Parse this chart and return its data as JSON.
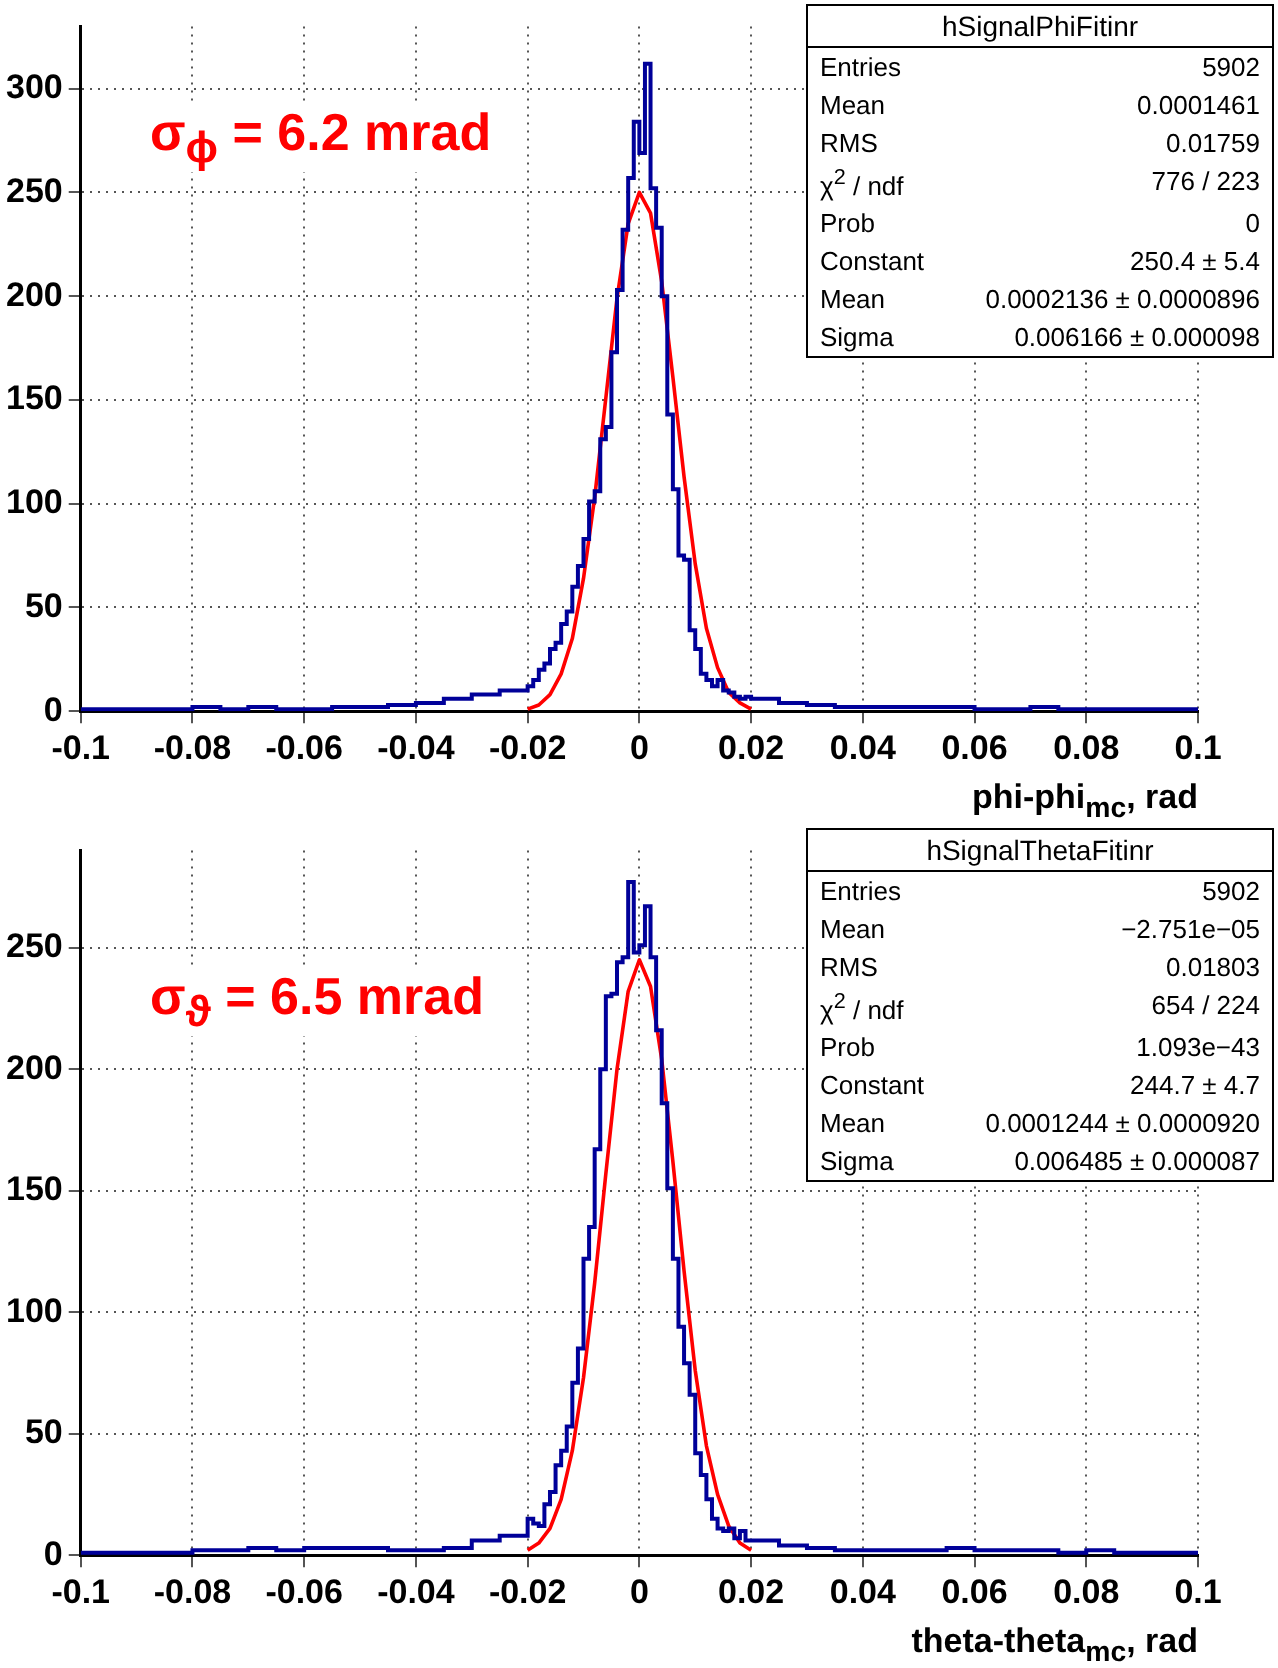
{
  "chart_data": [
    {
      "type": "histogram",
      "xlabel": "phi-phi$_{mc}$, rad",
      "color": "#000099",
      "bins": [
        -0.1,
        -0.095,
        -0.09,
        -0.085,
        -0.08,
        -0.075,
        -0.07,
        -0.065,
        -0.06,
        -0.055,
        -0.05,
        -0.045,
        -0.04,
        -0.035,
        -0.03,
        -0.025,
        -0.02,
        -0.019,
        -0.018,
        -0.017,
        -0.016,
        -0.015,
        -0.014,
        -0.013,
        -0.012,
        -0.011,
        -0.01,
        -0.009,
        -0.008,
        -0.007,
        -0.006,
        -0.005,
        -0.004,
        -0.003,
        -0.002,
        -0.001,
        0,
        0.001,
        0.002,
        0.003,
        0.004,
        0.005,
        0.006,
        0.007,
        0.008,
        0.009,
        0.01,
        0.011,
        0.012,
        0.013,
        0.014,
        0.015,
        0.016,
        0.017,
        0.018,
        0.019,
        0.02,
        0.025,
        0.03,
        0.035,
        0.04,
        0.045,
        0.05,
        0.055,
        0.06,
        0.065,
        0.07,
        0.075,
        0.08,
        0.085,
        0.09,
        0.095,
        0.1
      ],
      "values": [
        1,
        1,
        1,
        1,
        2,
        1,
        2,
        1,
        1,
        2,
        2,
        3,
        4,
        6,
        8,
        10,
        12,
        15,
        20,
        23,
        30,
        33,
        42,
        48,
        60,
        70,
        83,
        101,
        106,
        131,
        137,
        173,
        203,
        232,
        257,
        284,
        269,
        312,
        252,
        233,
        200,
        143,
        107,
        75,
        73,
        39,
        30,
        18,
        15,
        12,
        15,
        10,
        9,
        7,
        6,
        7,
        6,
        4,
        3,
        2,
        2,
        2,
        2,
        2,
        1,
        1,
        2,
        1,
        1,
        1,
        1,
        1
      ],
      "series": [
        {
          "type": "line",
          "color": "#ff0000",
          "x": [
            -0.02,
            -0.018,
            -0.016,
            -0.014,
            -0.012,
            -0.01,
            -0.008,
            -0.006,
            -0.004,
            -0.002,
            0,
            0.002,
            0.004,
            0.006,
            0.008,
            0.01,
            0.012,
            0.014,
            0.016,
            0.018,
            0.02
          ],
          "values": [
            1,
            3,
            8,
            18,
            35,
            64,
            103,
            151,
            199,
            235,
            250,
            240,
            207,
            161,
            113,
            71,
            40,
            21,
            9,
            4,
            1
          ]
        }
      ],
      "xlim": [
        -0.1,
        0.1
      ],
      "xticks": [
        -0.1,
        -0.08,
        -0.06,
        -0.04,
        -0.02,
        0,
        0.02,
        0.04,
        0.06,
        0.08,
        0.1
      ],
      "ylim": [
        0,
        330
      ],
      "yticks": [
        0,
        50,
        100,
        150,
        200,
        250,
        300
      ],
      "grid": true,
      "legend": false,
      "marker": "none",
      "annotations": [
        "σ$_{ϕ}$ = 6.2 mrad",
        "hSignalPhiFitinr",
        "Entries 5902",
        "Mean 0.0001461",
        "RMS 0.01759",
        "χ$^{2}$ / ndf 776 / 223",
        "Prob 0",
        "Constant 250.4 ± 5.4",
        "Mean 0.0002136 ± 0.0000896",
        "Sigma 0.006166 ± 0.000098"
      ]
    },
    {
      "type": "histogram",
      "xlabel": "theta-theta$_{mc}$, rad",
      "color": "#000099",
      "bins": [
        -0.1,
        -0.095,
        -0.09,
        -0.085,
        -0.08,
        -0.075,
        -0.07,
        -0.065,
        -0.06,
        -0.055,
        -0.05,
        -0.045,
        -0.04,
        -0.035,
        -0.03,
        -0.025,
        -0.02,
        -0.019,
        -0.018,
        -0.017,
        -0.016,
        -0.015,
        -0.014,
        -0.013,
        -0.012,
        -0.011,
        -0.01,
        -0.009,
        -0.008,
        -0.007,
        -0.006,
        -0.005,
        -0.004,
        -0.003,
        -0.002,
        -0.001,
        0,
        0.001,
        0.002,
        0.003,
        0.004,
        0.005,
        0.006,
        0.007,
        0.008,
        0.009,
        0.01,
        0.011,
        0.012,
        0.013,
        0.014,
        0.015,
        0.016,
        0.017,
        0.018,
        0.019,
        0.02,
        0.025,
        0.03,
        0.035,
        0.04,
        0.045,
        0.05,
        0.055,
        0.06,
        0.065,
        0.07,
        0.075,
        0.08,
        0.085,
        0.09,
        0.095,
        0.1
      ],
      "values": [
        1,
        1,
        1,
        1,
        2,
        2,
        3,
        2,
        3,
        3,
        3,
        2,
        2,
        3,
        6,
        8,
        15,
        13,
        12,
        21,
        26,
        37,
        43,
        53,
        71,
        85,
        122,
        135,
        167,
        200,
        230,
        231,
        244,
        246,
        277,
        248,
        251,
        267,
        246,
        216,
        186,
        151,
        122,
        94,
        79,
        66,
        42,
        33,
        23,
        15,
        11,
        10,
        11,
        7,
        10,
        6,
        6,
        4,
        3,
        2,
        2,
        2,
        2,
        3,
        2,
        2,
        2,
        1,
        2,
        1,
        1,
        1
      ],
      "series": [
        {
          "type": "line",
          "color": "#ff0000",
          "x": [
            -0.02,
            -0.018,
            -0.016,
            -0.014,
            -0.012,
            -0.01,
            -0.008,
            -0.006,
            -0.004,
            -0.002,
            0,
            0.002,
            0.004,
            0.006,
            0.008,
            0.01,
            0.012,
            0.014,
            0.016,
            0.018,
            0.02
          ],
          "values": [
            2,
            5,
            11,
            23,
            43,
            73,
            112,
            157,
            200,
            232,
            245,
            234,
            204,
            162,
            117,
            76,
            45,
            25,
            12,
            5,
            2
          ]
        }
      ],
      "xlim": [
        -0.1,
        0.1
      ],
      "xticks": [
        -0.1,
        -0.08,
        -0.06,
        -0.04,
        -0.02,
        0,
        0.02,
        0.04,
        0.06,
        0.08,
        0.1
      ],
      "ylim": [
        0,
        290
      ],
      "yticks": [
        0,
        50,
        100,
        150,
        200,
        250
      ],
      "grid": true,
      "legend": false,
      "marker": "none",
      "annotations": [
        "σ$_{ϑ}$ = 6.5 mrad",
        "hSignalThetaFitinr",
        "Entries 5902",
        "Mean −2.751e−05",
        "RMS 0.01803",
        "χ$^{2}$ / ndf 654 / 224",
        "Prob 1.093e−43",
        "Constant 244.7 ± 4.7",
        "Mean 0.0001244 ± 0.0000920",
        "Sigma 0.006485 ± 0.000087"
      ]
    }
  ]
}
